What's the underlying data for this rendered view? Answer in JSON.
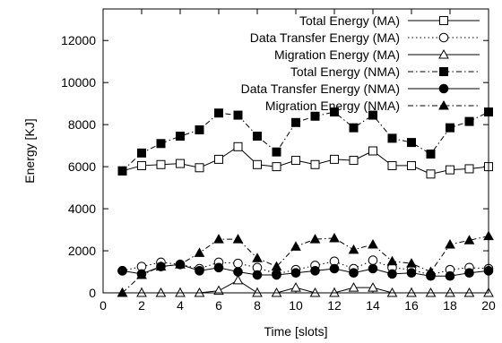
{
  "chart_data": {
    "type": "line",
    "xlabel": "Time [slots]",
    "ylabel": "Energy [KJ]",
    "xlim": [
      0,
      20
    ],
    "ylim": [
      0,
      13500
    ],
    "xticks": [
      0,
      2,
      4,
      6,
      8,
      10,
      12,
      14,
      16,
      18,
      20
    ],
    "yticks": [
      0,
      2000,
      4000,
      6000,
      8000,
      10000,
      12000
    ],
    "grid": false,
    "legend_position": "top-right",
    "x": [
      1,
      2,
      3,
      4,
      5,
      6,
      7,
      8,
      9,
      10,
      11,
      12,
      13,
      14,
      15,
      16,
      17,
      18,
      19,
      20
    ],
    "series": [
      {
        "name": "Total Energy (MA)",
        "marker": "open-square",
        "line": "solid",
        "values": [
          5800,
          6050,
          6100,
          6150,
          5950,
          6350,
          6950,
          6100,
          6000,
          6300,
          6100,
          6350,
          6300,
          6750,
          6050,
          6050,
          5650,
          5850,
          5900,
          6000
        ]
      },
      {
        "name": "Data Transfer Energy (MA)",
        "marker": "open-circle",
        "line": "dotted",
        "values": [
          1050,
          1250,
          1450,
          1350,
          1150,
          1450,
          1400,
          1200,
          900,
          1100,
          1300,
          1500,
          1150,
          1550,
          1200,
          1100,
          850,
          1100,
          1200,
          1150
        ]
      },
      {
        "name": "Migration Energy (MA)",
        "marker": "open-triangle",
        "line": "solid",
        "values": [
          0,
          0,
          0,
          0,
          0,
          100,
          600,
          0,
          0,
          250,
          0,
          0,
          250,
          250,
          0,
          0,
          0,
          0,
          0,
          0
        ]
      },
      {
        "name": "Total Energy (NMA)",
        "marker": "filled-square",
        "line": "dash-dot",
        "values": [
          5800,
          6650,
          7100,
          7450,
          7750,
          8550,
          8450,
          7450,
          6700,
          8100,
          8400,
          8600,
          7850,
          8450,
          7350,
          7150,
          6600,
          7850,
          8150,
          8600
        ]
      },
      {
        "name": "Data Transfer Energy (NMA)",
        "marker": "filled-circle",
        "line": "solid",
        "values": [
          1050,
          900,
          1250,
          1350,
          1050,
          1200,
          1000,
          850,
          850,
          950,
          1050,
          1150,
          950,
          1150,
          900,
          950,
          800,
          800,
          950,
          1050
        ]
      },
      {
        "name": "Migration Energy (NMA)",
        "marker": "filled-triangle",
        "line": "dash-dot",
        "values": [
          0,
          850,
          1250,
          1350,
          1900,
          2550,
          2550,
          1650,
          1250,
          2200,
          2550,
          2600,
          2050,
          2300,
          1500,
          1400,
          1000,
          2300,
          2500,
          2700
        ]
      }
    ]
  }
}
